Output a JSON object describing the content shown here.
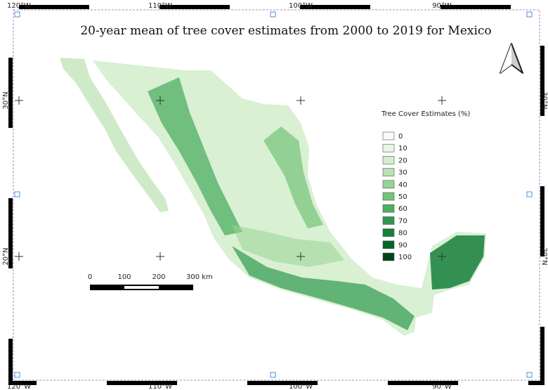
{
  "title": "20-year mean of tree cover estimates from 2000 to 2019 for Mexico",
  "graticule": {
    "longitudes": [
      "120°W",
      "110°W",
      "100°W",
      "90°W"
    ],
    "latitudes": [
      "30°N",
      "20°N"
    ]
  },
  "legend": {
    "title": "Tree Cover Estimates (%)",
    "items": [
      {
        "label": "0",
        "color": "#f7fcf5"
      },
      {
        "label": "10",
        "color": "#e8f6e3"
      },
      {
        "label": "20",
        "color": "#d3eecd"
      },
      {
        "label": "30",
        "color": "#b7e2b1"
      },
      {
        "label": "40",
        "color": "#97d494"
      },
      {
        "label": "50",
        "color": "#73c378"
      },
      {
        "label": "60",
        "color": "#4daf62"
      },
      {
        "label": "70",
        "color": "#2f984f"
      },
      {
        "label": "80",
        "color": "#157f3b"
      },
      {
        "label": "90",
        "color": "#036429"
      },
      {
        "label": "100",
        "color": "#00441b"
      }
    ]
  },
  "scale_bar": {
    "labels": [
      "0",
      "100",
      "200",
      "300 km"
    ]
  }
}
